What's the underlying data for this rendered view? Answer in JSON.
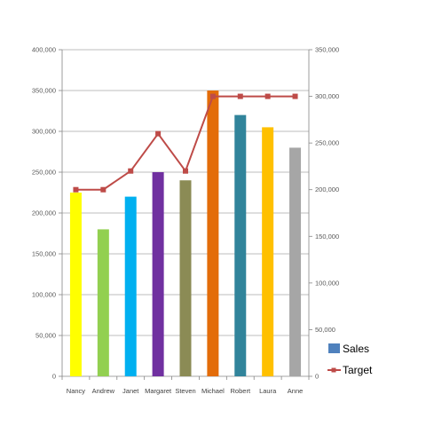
{
  "chart_data": {
    "type": "bar",
    "categories": [
      "Nancy",
      "Andrew",
      "Janet",
      "Margaret",
      "Steven",
      "Michael",
      "Robert",
      "Laura",
      "Anne"
    ],
    "series": [
      {
        "name": "Sales",
        "type": "bar",
        "axis": "left",
        "values": [
          225000,
          180000,
          220000,
          250000,
          240000,
          350000,
          320000,
          305000,
          280000
        ],
        "colors": [
          "#ffff00",
          "#92d050",
          "#00b0f0",
          "#7030a0",
          "#8b8b55",
          "#e36c09",
          "#31849b",
          "#ffc000",
          "#a6a6a6"
        ]
      },
      {
        "name": "Target",
        "type": "line",
        "axis": "right",
        "values": [
          200000,
          200000,
          220000,
          260000,
          220000,
          300000,
          300000,
          300000,
          300000
        ],
        "color": "#be4b48"
      }
    ],
    "y_left": {
      "min": 0,
      "max": 400000,
      "step": 50000
    },
    "y_right": {
      "min": 0,
      "max": 350000,
      "step": 50000
    },
    "legend_placement": "bottom-right",
    "legend_swatch_color": "#4f81bd",
    "gridlines": true
  }
}
